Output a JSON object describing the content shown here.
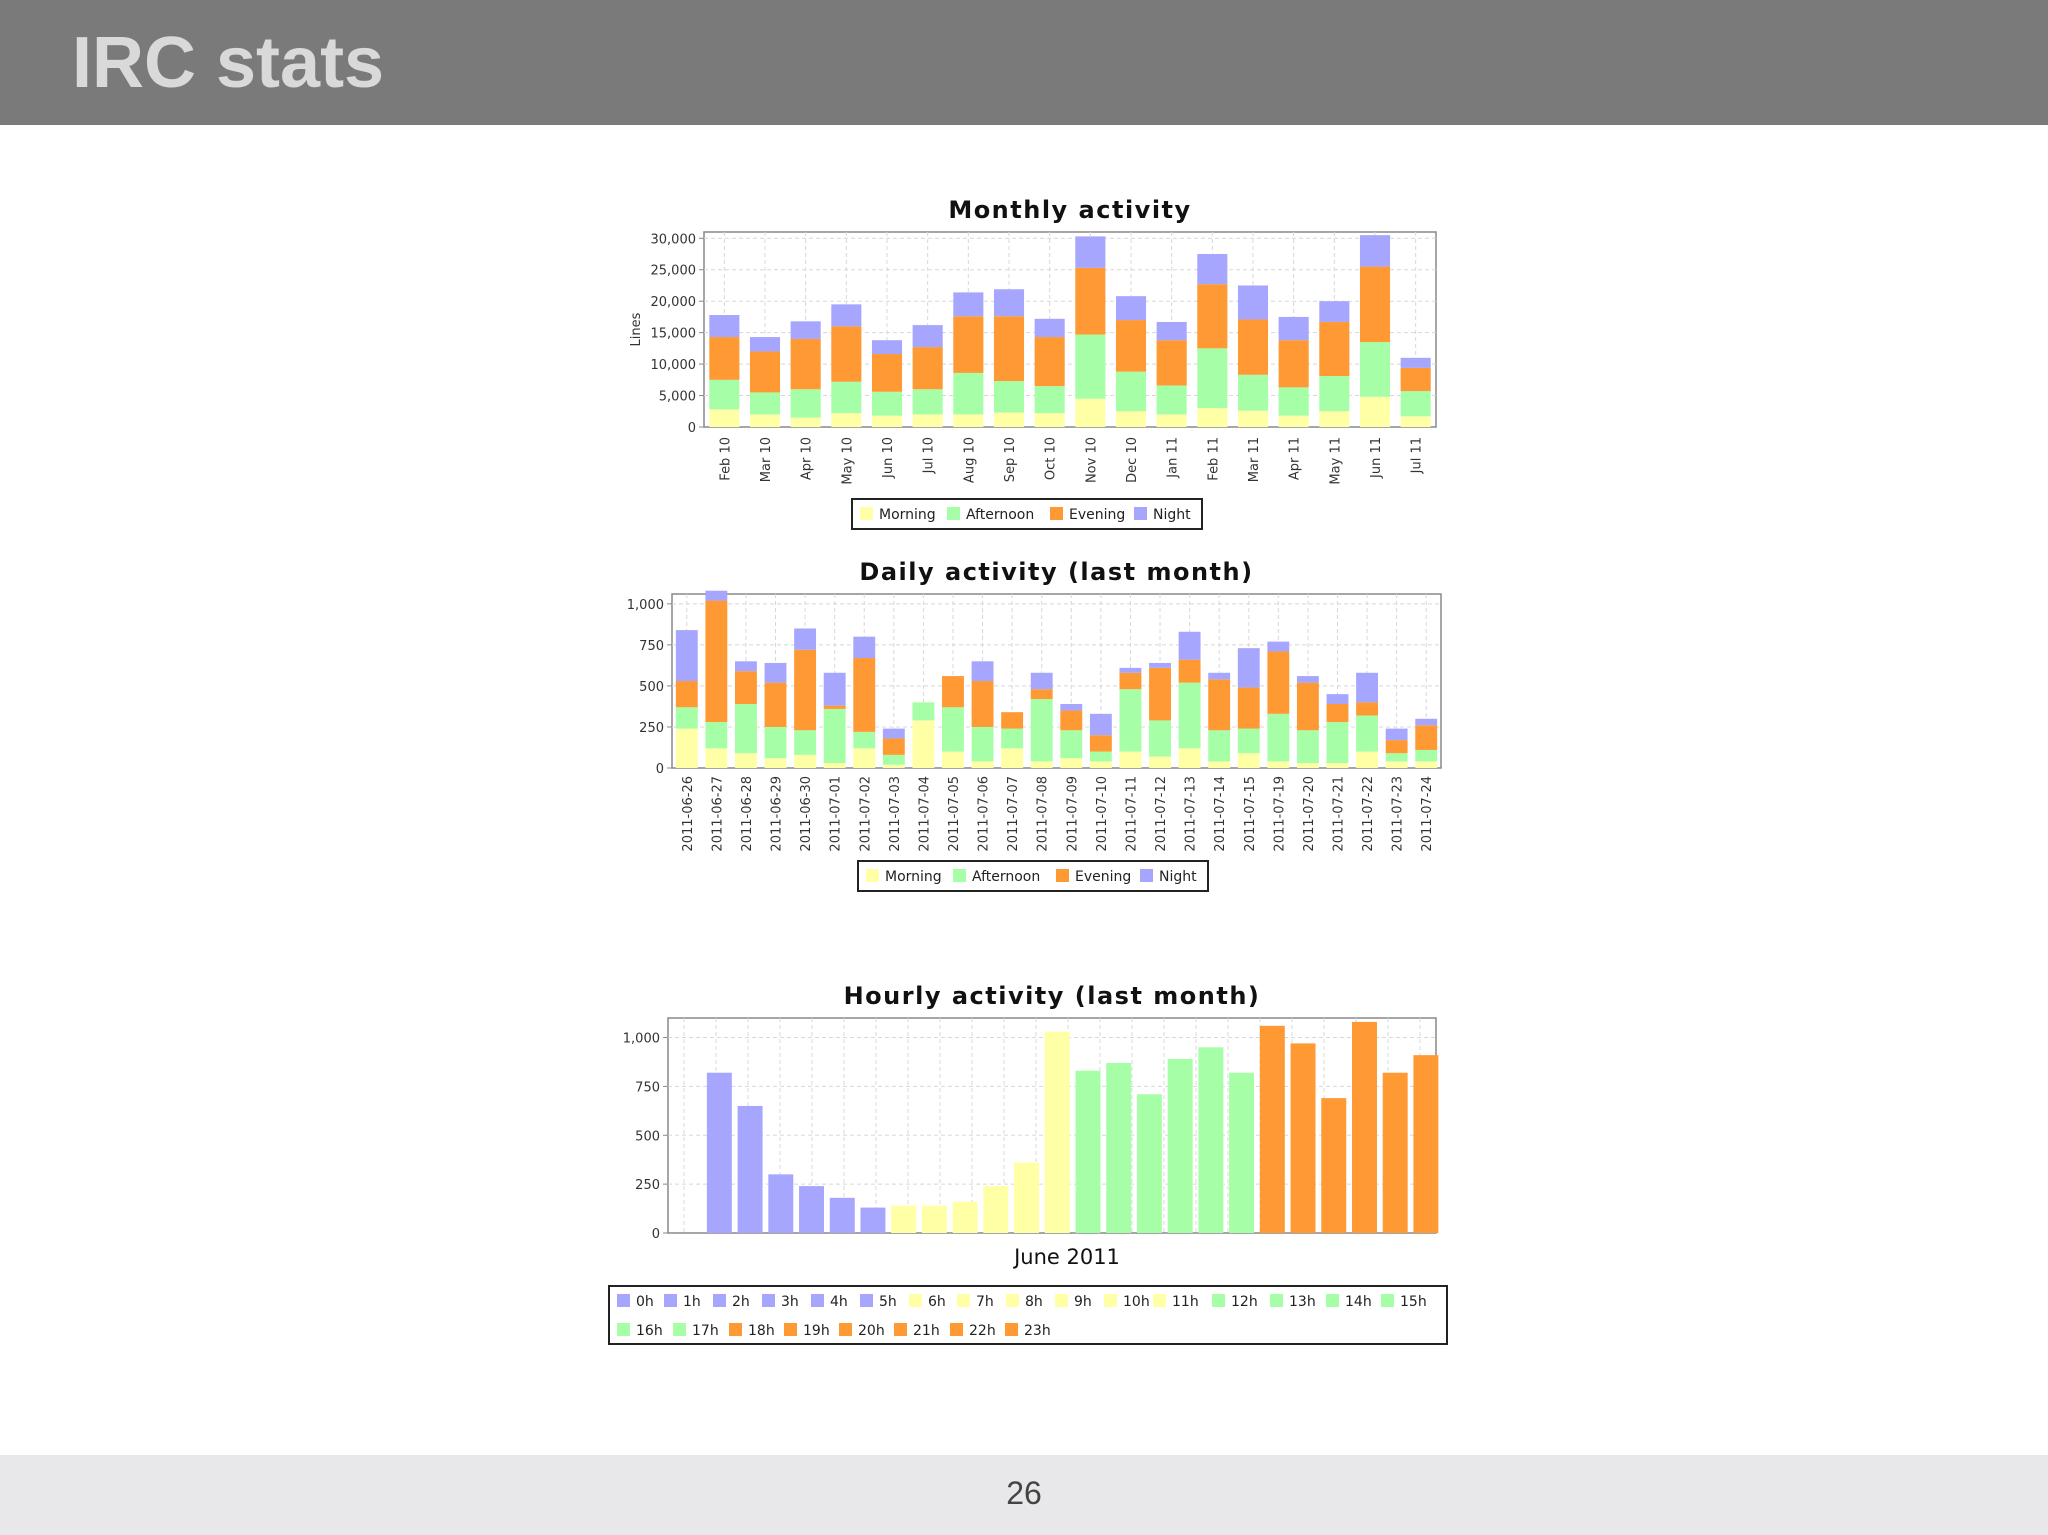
{
  "slide": {
    "title": "IRC stats",
    "page_number": "26"
  },
  "colors": {
    "Morning": "#ffffa6",
    "Afternoon": "#a6ffa6",
    "Evening": "#ff9933",
    "Night": "#a6a6ff",
    "grid": "#d8d8d8",
    "axis": "#888888"
  },
  "chart_data": [
    {
      "type": "bar",
      "stacked": true,
      "title": "Monthly activity",
      "ylabel": "Lines",
      "xlabel": "",
      "ylim": [
        0,
        31000
      ],
      "yticks": [
        "0",
        "5,000",
        "10,000",
        "15,000",
        "20,000",
        "25,000",
        "30,000"
      ],
      "grid": true,
      "legend_placement": "bottom",
      "categories": [
        "Feb 10",
        "Mar 10",
        "Apr 10",
        "May 10",
        "Jun 10",
        "Jul 10",
        "Aug 10",
        "Sep 10",
        "Oct 10",
        "Nov 10",
        "Dec 10",
        "Jan 11",
        "Feb 11",
        "Mar 11",
        "Apr 11",
        "May 11",
        "Jun 11",
        "Jul 11"
      ],
      "series": [
        {
          "name": "Morning",
          "values": [
            2800,
            2000,
            1500,
            2200,
            1800,
            2000,
            2000,
            2300,
            2200,
            4500,
            2500,
            2000,
            3000,
            2600,
            1800,
            2500,
            4800,
            1700
          ]
        },
        {
          "name": "Afternoon",
          "values": [
            4700,
            3500,
            4500,
            5000,
            3800,
            4000,
            6600,
            5000,
            4300,
            10200,
            6300,
            4600,
            9500,
            5700,
            4500,
            5600,
            8700,
            4000
          ]
        },
        {
          "name": "Evening",
          "values": [
            6800,
            6500,
            8000,
            8800,
            6000,
            6700,
            9000,
            10300,
            7800,
            10600,
            8200,
            7200,
            10200,
            8800,
            7500,
            8600,
            12000,
            3700
          ]
        },
        {
          "name": "Night",
          "values": [
            3500,
            2300,
            2800,
            3500,
            2200,
            3500,
            3800,
            4300,
            2900,
            5000,
            3800,
            2900,
            4800,
            5400,
            3700,
            3300,
            5000,
            1600
          ]
        }
      ]
    },
    {
      "type": "bar",
      "stacked": true,
      "title": "Daily activity (last month)",
      "xlabel": "",
      "ylabel": "",
      "ylim": [
        0,
        1060
      ],
      "yticks": [
        "0",
        "250",
        "500",
        "750",
        "1,000"
      ],
      "grid": true,
      "legend_placement": "bottom",
      "categories": [
        "2011-06-26",
        "2011-06-27",
        "2011-06-28",
        "2011-06-29",
        "2011-06-30",
        "2011-07-01",
        "2011-07-02",
        "2011-07-03",
        "2011-07-04",
        "2011-07-05",
        "2011-07-06",
        "2011-07-07",
        "2011-07-08",
        "2011-07-09",
        "2011-07-10",
        "2011-07-11",
        "2011-07-12",
        "2011-07-13",
        "2011-07-14",
        "2011-07-15",
        "2011-07-19",
        "2011-07-20",
        "2011-07-21",
        "2011-07-22",
        "2011-07-23",
        "2011-07-24"
      ],
      "series": [
        {
          "name": "Morning",
          "values": [
            240,
            120,
            90,
            60,
            80,
            30,
            120,
            20,
            290,
            100,
            40,
            120,
            40,
            60,
            40,
            100,
            70,
            120,
            40,
            90,
            40,
            30,
            30,
            100,
            40,
            40
          ]
        },
        {
          "name": "Afternoon",
          "values": [
            130,
            160,
            300,
            190,
            150,
            330,
            100,
            60,
            110,
            270,
            210,
            120,
            380,
            170,
            60,
            380,
            220,
            400,
            190,
            150,
            290,
            200,
            250,
            220,
            50,
            70
          ]
        },
        {
          "name": "Evening",
          "values": [
            160,
            740,
            200,
            270,
            490,
            20,
            450,
            100,
            0,
            190,
            280,
            100,
            60,
            120,
            100,
            100,
            320,
            140,
            310,
            250,
            380,
            290,
            110,
            80,
            80,
            150
          ]
        },
        {
          "name": "Night",
          "values": [
            310,
            60,
            60,
            120,
            130,
            200,
            130,
            60,
            0,
            0,
            120,
            0,
            100,
            40,
            130,
            30,
            30,
            170,
            40,
            240,
            60,
            40,
            60,
            180,
            70,
            40
          ]
        }
      ]
    },
    {
      "type": "bar",
      "title": "Hourly activity (last month)",
      "xlabel": "June 2011",
      "ylabel": "",
      "ylim": [
        0,
        1100
      ],
      "yticks": [
        "0",
        "250",
        "500",
        "750",
        "1,000"
      ],
      "grid": true,
      "legend_placement": "bottom",
      "categories": [
        "0h",
        "1h",
        "2h",
        "3h",
        "4h",
        "5h",
        "6h",
        "7h",
        "8h",
        "9h",
        "10h",
        "11h",
        "12h",
        "13h",
        "14h",
        "15h",
        "16h",
        "17h",
        "18h",
        "19h",
        "20h",
        "21h",
        "22h",
        "23h"
      ],
      "values": [
        820,
        650,
        300,
        240,
        180,
        130,
        140,
        140,
        160,
        240,
        360,
        1030,
        830,
        870,
        710,
        890,
        950,
        820,
        1060,
        970,
        690,
        1080,
        820,
        910
      ],
      "period": [
        "Night",
        "Night",
        "Night",
        "Night",
        "Night",
        "Night",
        "Morning",
        "Morning",
        "Morning",
        "Morning",
        "Morning",
        "Morning",
        "Afternoon",
        "Afternoon",
        "Afternoon",
        "Afternoon",
        "Afternoon",
        "Afternoon",
        "Evening",
        "Evening",
        "Evening",
        "Evening",
        "Evening",
        "Evening"
      ]
    }
  ]
}
